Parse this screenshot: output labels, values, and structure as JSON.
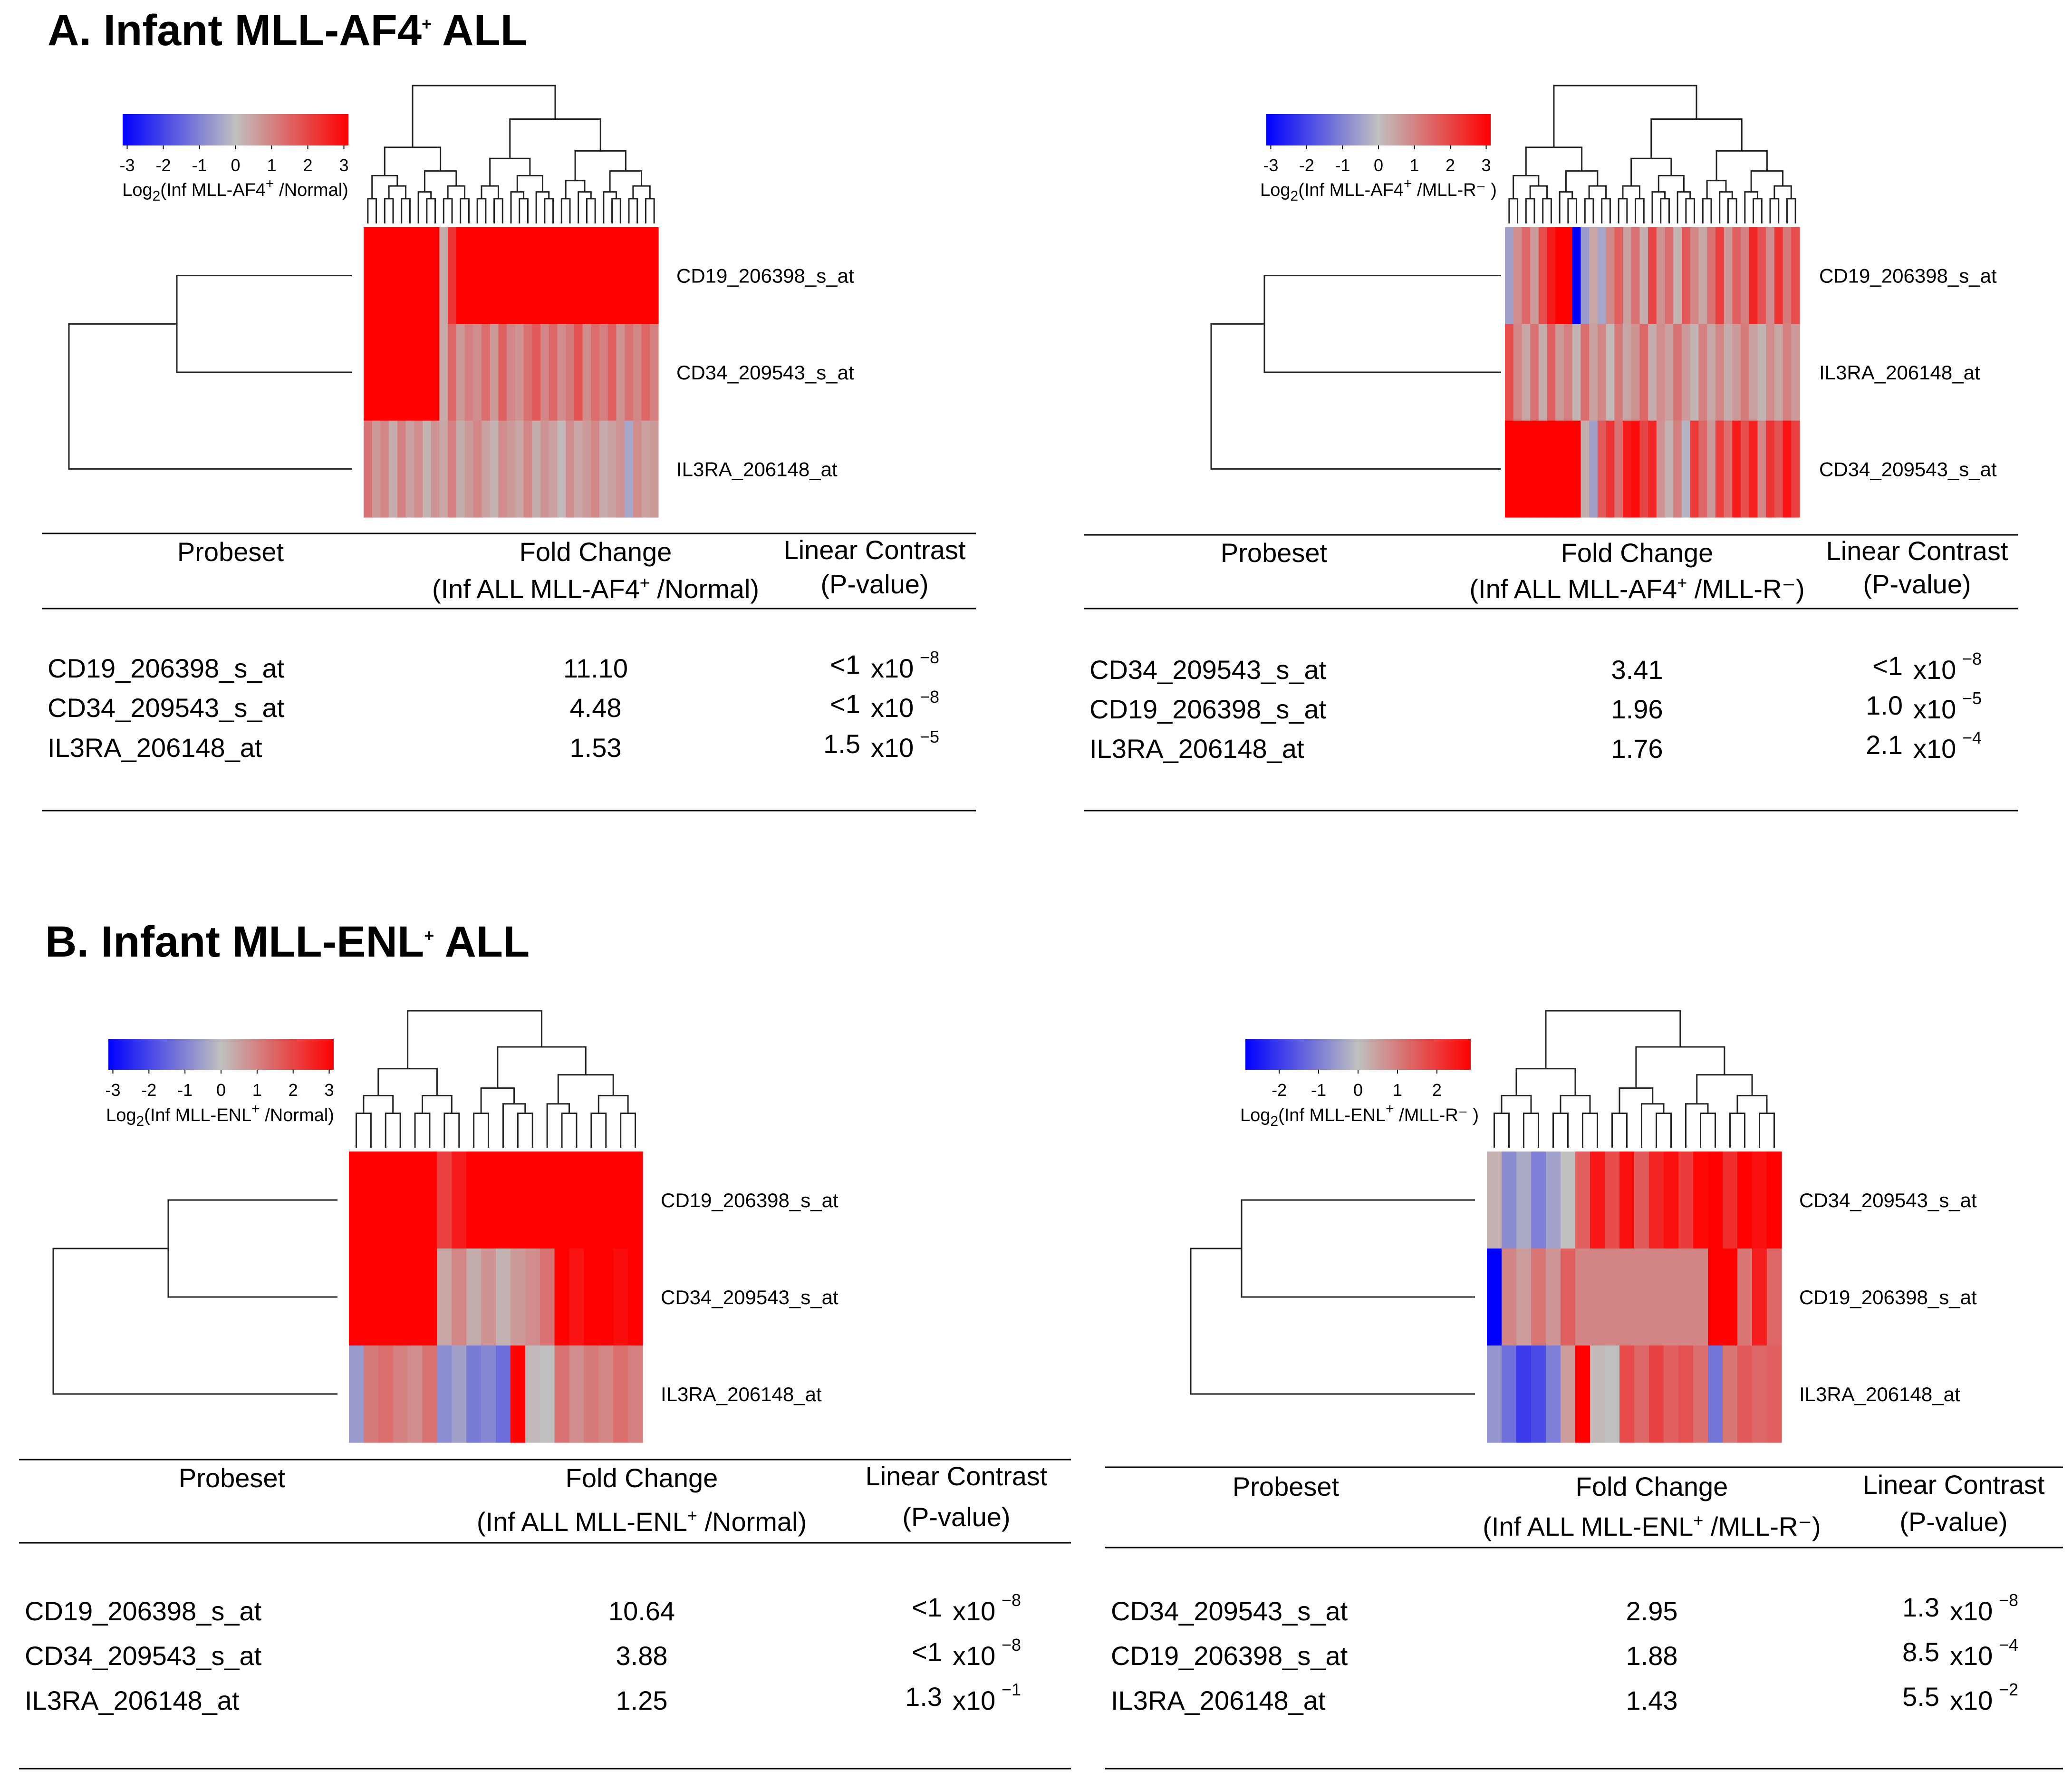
{
  "sections": [
    {
      "title_prefix": "A. Infant MLL-AF4",
      "title_sup": "+",
      "title_suffix": " ALL"
    },
    {
      "title_prefix": "B. Infant MLL-ENL",
      "title_sup": "+",
      "title_suffix": " ALL"
    }
  ],
  "chart_data": [
    {
      "type": "heatmap",
      "panel": "A-left",
      "colorbar": {
        "ticks": [
          "-3",
          "-2",
          "-1",
          "0",
          "1",
          "2",
          "3"
        ],
        "label_pre": "Log",
        "label_sub": "2",
        "label_mid": "(Inf MLL-AF4",
        "label_sup": "+",
        "label_post": " /Normal)",
        "colors": [
          "#0000ff",
          "#c0c0c0",
          "#ff0000"
        ]
      },
      "row_labels": [
        "CD19_206398_s_at",
        "CD34_209543_s_at",
        "IL3RA_206148_at"
      ],
      "values": [
        [
          3,
          3,
          3,
          3,
          3,
          3,
          3,
          3,
          3,
          0.3,
          2.2,
          3,
          3,
          3,
          3,
          3,
          3,
          3,
          3,
          3,
          3,
          3,
          3,
          3,
          3,
          3,
          3,
          3,
          3,
          3,
          3,
          3,
          3,
          3,
          3
        ],
        [
          3,
          3,
          3,
          3,
          3,
          3,
          3,
          3,
          3,
          0.3,
          1.4,
          0.6,
          1.0,
          0.8,
          1.3,
          0.6,
          1.5,
          0.9,
          0.7,
          1.2,
          1.6,
          0.9,
          1.4,
          0.8,
          1.1,
          1.7,
          0.8,
          1.3,
          1.0,
          1.5,
          0.7,
          1.2,
          0.9,
          1.4,
          1.0
        ],
        [
          1.2,
          0.6,
          0.9,
          0.3,
          1.0,
          0.5,
          0.8,
          0.2,
          0.7,
          0.4,
          1.0,
          0.3,
          0.6,
          0.9,
          0.5,
          0.2,
          0.8,
          0.6,
          0.4,
          0.9,
          0.3,
          0.7,
          0.5,
          0.1,
          0.8,
          0.4,
          0.6,
          0.9,
          0.3,
          0.5,
          0.7,
          -0.4,
          0.8,
          0.5,
          0.6
        ]
      ],
      "table": {
        "headers": {
          "probeset": "Probeset",
          "fold_change": "Fold Change",
          "fold_change_sub_pre": "(Inf ALL MLL-AF4",
          "fold_change_sub_sup": "+",
          "fold_change_sub_post": " /Normal)",
          "linear_contrast": "Linear Contrast",
          "pvalue": "(P-value)"
        },
        "rows": [
          {
            "probeset": "CD19_206398_s_at",
            "fold_change": "11.10",
            "p_mant": "<1",
            "p_base": "x10",
            "p_exp": "−8"
          },
          {
            "probeset": "CD34_209543_s_at",
            "fold_change": "4.48",
            "p_mant": "<1",
            "p_base": "x10",
            "p_exp": "−8"
          },
          {
            "probeset": "IL3RA_206148_at",
            "fold_change": "1.53",
            "p_mant": "1.5",
            "p_base": "x10",
            "p_exp": "−5"
          }
        ]
      }
    },
    {
      "type": "heatmap",
      "panel": "A-right",
      "colorbar": {
        "ticks": [
          "-3",
          "-2",
          "-1",
          "0",
          "1",
          "2",
          "3"
        ],
        "label_pre": "Log",
        "label_sub": "2",
        "label_mid": "(Inf MLL-AF4",
        "label_sup": "+",
        "label_post": " /MLL-R⁻ )",
        "colors": [
          "#0000ff",
          "#c0c0c0",
          "#ff0000"
        ]
      },
      "row_labels": [
        "CD19_206398_s_at",
        "IL3RA_206148_at",
        "CD34_209543_s_at"
      ],
      "values": [
        [
          -0.5,
          0.8,
          1.4,
          0.6,
          1.8,
          2.6,
          3,
          3,
          -3,
          -0.6,
          0.4,
          -0.4,
          0.9,
          1.5,
          0.5,
          1.2,
          0.3,
          1.9,
          0.7,
          1.3,
          0.2,
          1.6,
          0.9,
          0.4,
          1.2,
          2.0,
          0.6,
          1.5,
          1.0,
          2.4,
          1.7,
          0.8,
          2.2,
          1.1,
          1.8
        ],
        [
          1.8,
          0.9,
          0.4,
          1.2,
          0.3,
          1.5,
          0.6,
          1.0,
          0.2,
          1.3,
          0.5,
          0.9,
          0.1,
          1.1,
          0.4,
          0.7,
          1.4,
          0.3,
          0.8,
          0.5,
          1.2,
          0.6,
          0.2,
          1.0,
          0.4,
          0.9,
          0.3,
          0.6,
          1.1,
          0.5,
          0.2,
          0.8,
          0.4,
          1.0,
          0.6
        ],
        [
          3,
          3,
          3,
          3,
          3,
          3,
          3,
          3,
          3,
          0.3,
          -0.5,
          1.6,
          2.2,
          1.2,
          2.6,
          2.8,
          1.9,
          2.4,
          0.7,
          0.2,
          1.0,
          -0.2,
          2.1,
          1.4,
          0.6,
          2.0,
          1.3,
          2.6,
          1.8,
          2.5,
          0.9,
          2.2,
          1.7,
          2.7,
          2.0
        ]
      ],
      "table": {
        "headers": {
          "probeset": "Probeset",
          "fold_change": "Fold Change",
          "fold_change_sub_pre": "(Inf ALL MLL-AF4",
          "fold_change_sub_sup": "+",
          "fold_change_sub_post": " /MLL-R⁻)",
          "linear_contrast": "Linear Contrast",
          "pvalue": "(P-value)"
        },
        "rows": [
          {
            "probeset": "CD34_209543_s_at",
            "fold_change": "3.41",
            "p_mant": "<1",
            "p_base": "x10",
            "p_exp": "−8"
          },
          {
            "probeset": "CD19_206398_s_at",
            "fold_change": "1.96",
            "p_mant": "1.0",
            "p_base": "x10",
            "p_exp": "−5"
          },
          {
            "probeset": "IL3RA_206148_at",
            "fold_change": "1.76",
            "p_mant": "2.1",
            "p_base": "x10",
            "p_exp": "−4"
          }
        ]
      }
    },
    {
      "type": "heatmap",
      "panel": "B-left",
      "colorbar": {
        "ticks": [
          "-3",
          "-2",
          "-1",
          "0",
          "1",
          "2",
          "3"
        ],
        "label_pre": "Log",
        "label_sub": "2",
        "label_mid": "(Inf MLL-ENL",
        "label_sup": "+",
        "label_post": " /Normal)",
        "colors": [
          "#0000ff",
          "#c0c0c0",
          "#ff0000"
        ]
      },
      "row_labels": [
        "CD19_206398_s_at",
        "CD34_209543_s_at",
        "IL3RA_206148_at"
      ],
      "values": [
        [
          3,
          3,
          3,
          3,
          3,
          3,
          2.0,
          2.6,
          3,
          3,
          3,
          3,
          3,
          3,
          3,
          3,
          3,
          3,
          3,
          3
        ],
        [
          3,
          3,
          3,
          3,
          3,
          3,
          0.4,
          0.9,
          0.3,
          0.7,
          0.2,
          0.6,
          0.8,
          1.2,
          3,
          2.7,
          3,
          3,
          2.8,
          3
        ],
        [
          -0.6,
          1.1,
          1.3,
          1.0,
          0.8,
          1.2,
          -0.8,
          -0.5,
          -1.1,
          -0.9,
          -1.3,
          3,
          0.1,
          0.0,
          1.2,
          0.8,
          1.1,
          0.9,
          1.3,
          1.0
        ]
      ],
      "table": {
        "headers": {
          "probeset": "Probeset",
          "fold_change": "Fold Change",
          "fold_change_sub_pre": "(Inf ALL MLL-ENL",
          "fold_change_sub_sup": "+",
          "fold_change_sub_post": " /Normal)",
          "linear_contrast": "Linear Contrast",
          "pvalue": "(P-value)"
        },
        "rows": [
          {
            "probeset": "CD19_206398_s_at",
            "fold_change": "10.64",
            "p_mant": "<1",
            "p_base": "x10",
            "p_exp": "−8"
          },
          {
            "probeset": "CD34_209543_s_at",
            "fold_change": "3.88",
            "p_mant": "<1",
            "p_base": "x10",
            "p_exp": "−8"
          },
          {
            "probeset": "IL3RA_206148_at",
            "fold_change": "1.25",
            "p_mant": "1.3",
            "p_base": "x10",
            "p_exp": "−1"
          }
        ]
      }
    },
    {
      "type": "heatmap",
      "panel": "B-right",
      "colorbar": {
        "ticks": [
          "-2",
          "-1",
          "0",
          "1",
          "2"
        ],
        "label_pre": "Log",
        "label_sub": "2",
        "label_mid": "(Inf MLL-ENL",
        "label_sup": "+",
        "label_post": " /MLL-R⁻ )",
        "colors": [
          "#0000ff",
          "#c0c0c0",
          "#ff0000"
        ]
      },
      "row_labels": [
        "CD34_209543_s_at",
        "CD19_206398_s_at",
        "IL3RA_206148_at"
      ],
      "values": [
        [
          0.2,
          -0.7,
          -0.3,
          -0.9,
          -0.4,
          0.0,
          1.3,
          2.3,
          1.6,
          2.4,
          1.4,
          2.1,
          2.4,
          1.8,
          2.5,
          2.6,
          2.0,
          2.6,
          2.4,
          2.6
        ],
        [
          -2.6,
          0.8,
          0.5,
          1.0,
          0.6,
          1.3,
          0.8,
          0.8,
          0.8,
          0.8,
          0.8,
          0.8,
          0.8,
          0.8,
          0.8,
          2.6,
          2.6,
          1.0,
          2.2,
          1.2
        ],
        [
          -0.6,
          -1.1,
          -1.8,
          -1.6,
          -0.9,
          0.5,
          2.6,
          0.1,
          0.0,
          1.6,
          1.2,
          1.7,
          1.3,
          1.5,
          1.1,
          -1.0,
          1.0,
          1.4,
          1.2,
          1.3
        ]
      ],
      "table": {
        "headers": {
          "probeset": "Probeset",
          "fold_change": "Fold Change",
          "fold_change_sub_pre": "(Inf ALL MLL-ENL",
          "fold_change_sub_sup": "+",
          "fold_change_sub_post": " /MLL-R⁻)",
          "linear_contrast": "Linear Contrast",
          "pvalue": "(P-value)"
        },
        "rows": [
          {
            "probeset": "CD34_209543_s_at",
            "fold_change": "2.95",
            "p_mant": "1.3",
            "p_base": "x10",
            "p_exp": "−8"
          },
          {
            "probeset": "CD19_206398_s_at",
            "fold_change": "1.88",
            "p_mant": "8.5",
            "p_base": "x10",
            "p_exp": "−4"
          },
          {
            "probeset": "IL3RA_206148_at",
            "fold_change": "1.43",
            "p_mant": "5.5",
            "p_base": "x10",
            "p_exp": "−2"
          }
        ]
      }
    }
  ]
}
